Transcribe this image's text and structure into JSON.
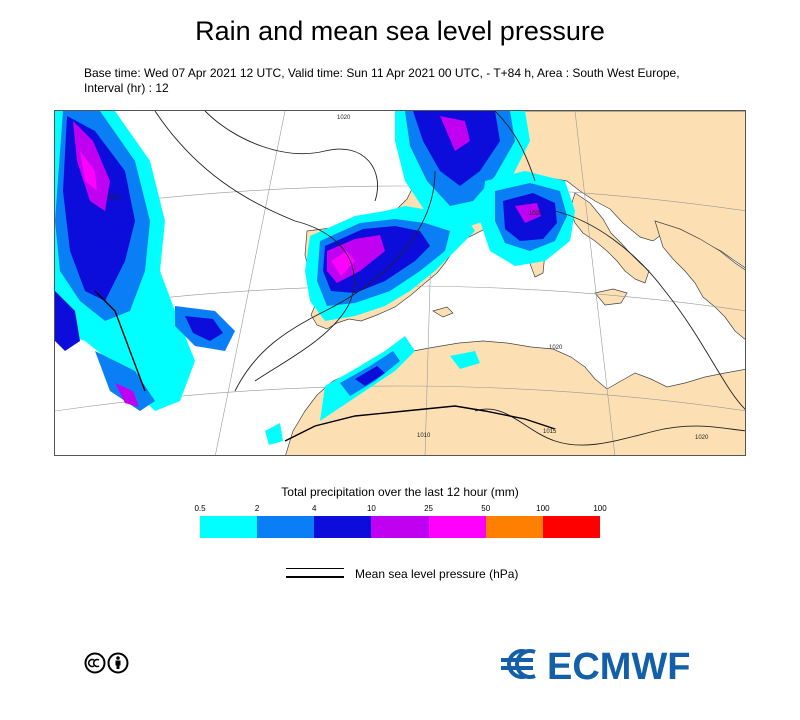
{
  "title": "Rain and mean sea level pressure",
  "subtitle": "Base time: Wed 07 Apr 2021 12 UTC, Valid time: Sun 11 Apr 2021 00 UTC, - T+84 h, Area : South West Europe, Interval (hr) : 12",
  "legend": {
    "title": "Total precipitation over the last 12 hour (mm)",
    "ticks": [
      "0.5",
      "2",
      "4",
      "10",
      "25",
      "50",
      "100",
      "100"
    ],
    "colors": [
      "#00ffff",
      "#0a7ff5",
      "#0d0ddb",
      "#c000f0",
      "#ff00ff",
      "#ff7f00",
      "#ff0000"
    ]
  },
  "mslp": {
    "label": "Mean sea level pressure (hPa)"
  },
  "isobar_labels": [
    "1015",
    "1020",
    "1020",
    "1020",
    "1020",
    "1015",
    "1010"
  ],
  "colors": {
    "land": "#fce0b4",
    "sea": "#ffffff",
    "coast": "#333333",
    "border": "#000000"
  },
  "logo": {
    "text": "ECMWF",
    "color": "#1460a8"
  }
}
